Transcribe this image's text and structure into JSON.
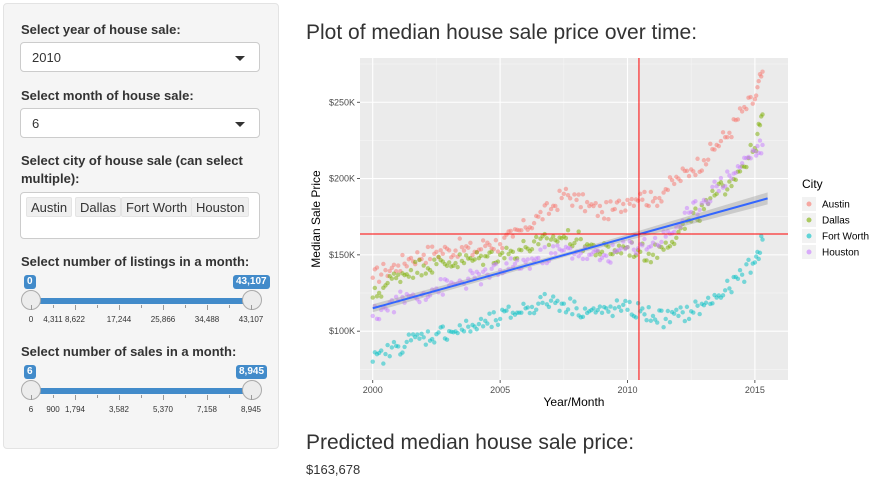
{
  "sidebar": {
    "year": {
      "label": "Select year of house sale:",
      "value": "2010"
    },
    "month": {
      "label": "Select month of house sale:",
      "value": "6"
    },
    "city": {
      "label_line1": "Select city of house sale (can select",
      "label_line2": "multiple):",
      "chips": [
        "Austin",
        "Dallas",
        "Fort Worth",
        "Houston"
      ]
    },
    "listings": {
      "label": "Select number of listings in a month:",
      "min_badge": "0",
      "max_badge": "43,107",
      "tick_labels": [
        "0",
        "4,311",
        "8,622",
        "17,244",
        "25,866",
        "34,488",
        "43,107"
      ]
    },
    "sales": {
      "label": "Select number of sales in a month:",
      "min_badge": "6",
      "max_badge": "8,945",
      "tick_labels": [
        "6",
        "900",
        "1,794",
        "3,582",
        "5,370",
        "7,158",
        "8,945"
      ]
    }
  },
  "main": {
    "plot_heading": "Plot of median house sale price over time:",
    "predicted_heading": "Predicted median house sale price:",
    "predicted_value": "$163,678"
  },
  "chart_data": {
    "type": "scatter",
    "title": "",
    "xlabel": "Year/Month",
    "ylabel": "Median Sale Price",
    "xlim": [
      1999.5,
      2016.3
    ],
    "ylim": [
      68000,
      279000
    ],
    "x_ticks": [
      2000,
      2005,
      2010,
      2015
    ],
    "y_ticks": [
      100000,
      150000,
      200000,
      250000
    ],
    "y_tick_labels": [
      "$100K",
      "$150K",
      "$200K",
      "$250K"
    ],
    "legend_title": "City",
    "legend_position": "right",
    "grid": true,
    "reference_lines": {
      "x": 2010.45,
      "y": 163678,
      "color": "#ff0000"
    },
    "trend_line": {
      "x": [
        2000,
        2015.5
      ],
      "y": [
        115000,
        187000
      ],
      "color": "#3366ff"
    },
    "series": [
      {
        "name": "Austin",
        "color": "#f8766d",
        "points": [
          [
            2000,
            135000
          ],
          [
            2000.5,
            140000
          ],
          [
            2001,
            143000
          ],
          [
            2001.5,
            148000
          ],
          [
            2002,
            150000
          ],
          [
            2002.5,
            152000
          ],
          [
            2003,
            153000
          ],
          [
            2003.5,
            155000
          ],
          [
            2004,
            152000
          ],
          [
            2004.5,
            158000
          ],
          [
            2005,
            157000
          ],
          [
            2005.5,
            162000
          ],
          [
            2006,
            168000
          ],
          [
            2006.5,
            175000
          ],
          [
            2007,
            180000
          ],
          [
            2007.5,
            190000
          ],
          [
            2008,
            186000
          ],
          [
            2008.5,
            182000
          ],
          [
            2009,
            178000
          ],
          [
            2009.5,
            180000
          ],
          [
            2010,
            186000
          ],
          [
            2010.5,
            190000
          ],
          [
            2011,
            185000
          ],
          [
            2011.5,
            193000
          ],
          [
            2012,
            200000
          ],
          [
            2012.5,
            206000
          ],
          [
            2013,
            212000
          ],
          [
            2013.5,
            222000
          ],
          [
            2014,
            230000
          ],
          [
            2014.5,
            244000
          ],
          [
            2015,
            252000
          ],
          [
            2015.3,
            270000
          ]
        ]
      },
      {
        "name": "Dallas",
        "color": "#7cae00",
        "points": [
          [
            2000,
            122000
          ],
          [
            2000.5,
            130000
          ],
          [
            2001,
            137000
          ],
          [
            2001.5,
            140000
          ],
          [
            2002,
            143000
          ],
          [
            2002.5,
            144000
          ],
          [
            2003,
            145000
          ],
          [
            2003.5,
            146000
          ],
          [
            2004,
            147000
          ],
          [
            2004.5,
            149000
          ],
          [
            2005,
            150000
          ],
          [
            2005.5,
            152000
          ],
          [
            2006,
            155000
          ],
          [
            2006.5,
            157000
          ],
          [
            2007,
            160000
          ],
          [
            2007.5,
            162000
          ],
          [
            2008,
            160000
          ],
          [
            2008.5,
            156000
          ],
          [
            2009,
            152000
          ],
          [
            2009.5,
            153000
          ],
          [
            2010,
            155000
          ],
          [
            2010.5,
            152000
          ],
          [
            2011,
            150000
          ],
          [
            2011.5,
            158000
          ],
          [
            2012,
            165000
          ],
          [
            2012.5,
            172000
          ],
          [
            2013,
            180000
          ],
          [
            2013.5,
            190000
          ],
          [
            2014,
            198000
          ],
          [
            2014.5,
            208000
          ],
          [
            2015,
            220000
          ],
          [
            2015.3,
            242000
          ]
        ]
      },
      {
        "name": "Fort Worth",
        "color": "#00bfc4",
        "points": [
          [
            2000,
            80000
          ],
          [
            2000.5,
            85000
          ],
          [
            2001,
            90000
          ],
          [
            2001.5,
            94000
          ],
          [
            2002,
            96000
          ],
          [
            2002.5,
            98000
          ],
          [
            2003,
            100000
          ],
          [
            2003.5,
            101000
          ],
          [
            2004,
            103000
          ],
          [
            2004.5,
            105000
          ],
          [
            2005,
            108000
          ],
          [
            2005.5,
            112000
          ],
          [
            2006,
            115000
          ],
          [
            2006.5,
            118000
          ],
          [
            2007,
            120000
          ],
          [
            2007.5,
            118000
          ],
          [
            2008,
            115000
          ],
          [
            2008.5,
            113000
          ],
          [
            2009,
            112000
          ],
          [
            2009.5,
            115000
          ],
          [
            2010,
            114000
          ],
          [
            2010.5,
            113000
          ],
          [
            2011,
            110000
          ],
          [
            2011.5,
            108000
          ],
          [
            2012,
            110000
          ],
          [
            2012.5,
            113000
          ],
          [
            2013,
            117000
          ],
          [
            2013.5,
            122000
          ],
          [
            2014,
            128000
          ],
          [
            2014.5,
            137000
          ],
          [
            2015,
            145000
          ],
          [
            2015.3,
            160000
          ]
        ]
      },
      {
        "name": "Houston",
        "color": "#c77cff",
        "points": [
          [
            2000,
            110000
          ],
          [
            2000.5,
            115000
          ],
          [
            2001,
            120000
          ],
          [
            2001.5,
            123000
          ],
          [
            2002,
            125000
          ],
          [
            2002.5,
            128000
          ],
          [
            2003,
            130000
          ],
          [
            2003.5,
            132000
          ],
          [
            2004,
            135000
          ],
          [
            2004.5,
            137000
          ],
          [
            2005,
            140000
          ],
          [
            2005.5,
            142000
          ],
          [
            2006,
            145000
          ],
          [
            2006.5,
            148000
          ],
          [
            2007,
            151000
          ],
          [
            2007.5,
            153000
          ],
          [
            2008,
            152000
          ],
          [
            2008.5,
            150000
          ],
          [
            2009,
            148000
          ],
          [
            2009.5,
            152000
          ],
          [
            2010,
            155000
          ],
          [
            2010.5,
            157000
          ],
          [
            2011,
            158000
          ],
          [
            2011.5,
            162000
          ],
          [
            2012,
            170000
          ],
          [
            2012.5,
            178000
          ],
          [
            2013,
            186000
          ],
          [
            2013.5,
            195000
          ],
          [
            2014,
            202000
          ],
          [
            2014.5,
            210000
          ],
          [
            2015,
            218000
          ],
          [
            2015.3,
            222000
          ]
        ]
      }
    ]
  }
}
